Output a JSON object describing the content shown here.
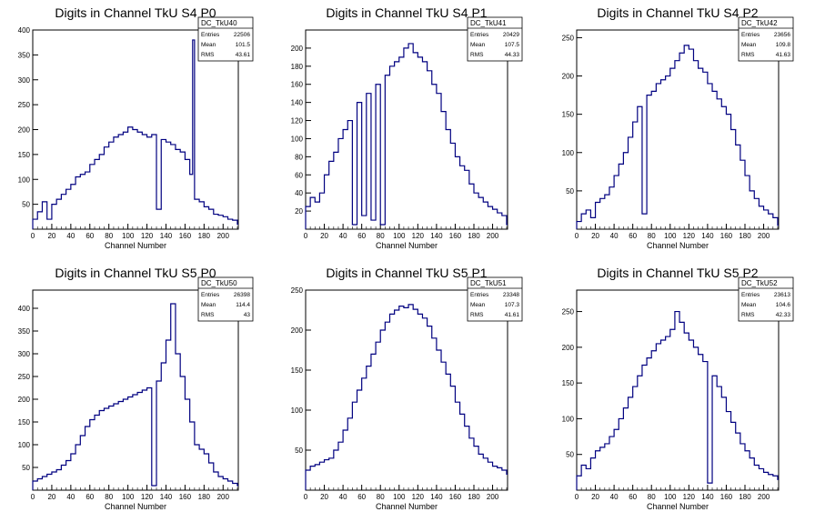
{
  "chart_data": [
    {
      "type": "histogram",
      "title": "Digits in Channel TkU S4 P0",
      "xlabel": "Channel Number",
      "xlim": [
        0,
        216
      ],
      "ylim": [
        0,
        400
      ],
      "xticks": [
        0,
        20,
        40,
        60,
        80,
        100,
        120,
        140,
        160,
        180,
        200
      ],
      "yticks": [
        50,
        100,
        150,
        200,
        250,
        300,
        350,
        400
      ],
      "color": "#000080",
      "stats": {
        "name": "DC_TkU40",
        "rows": [
          [
            "Entries",
            "22506"
          ],
          [
            "Mean",
            "101.5"
          ],
          [
            "RMS",
            "43.61"
          ]
        ]
      },
      "x": [
        [
          0,
          20
        ],
        [
          5,
          35
        ],
        [
          10,
          55
        ],
        [
          15,
          20
        ],
        [
          20,
          50
        ],
        [
          25,
          60
        ],
        [
          30,
          70
        ],
        [
          35,
          80
        ],
        [
          40,
          90
        ],
        [
          45,
          105
        ],
        [
          50,
          110
        ],
        [
          55,
          115
        ],
        [
          60,
          130
        ],
        [
          65,
          140
        ],
        [
          70,
          150
        ],
        [
          75,
          165
        ],
        [
          80,
          175
        ],
        [
          85,
          185
        ],
        [
          90,
          190
        ],
        [
          95,
          195
        ],
        [
          100,
          205
        ],
        [
          105,
          200
        ],
        [
          110,
          195
        ],
        [
          115,
          190
        ],
        [
          120,
          185
        ],
        [
          125,
          190
        ],
        [
          130,
          40
        ],
        [
          135,
          180
        ],
        [
          140,
          175
        ],
        [
          145,
          170
        ],
        [
          150,
          160
        ],
        [
          155,
          155
        ],
        [
          160,
          140
        ],
        [
          165,
          110
        ],
        [
          168,
          380
        ],
        [
          170,
          60
        ],
        [
          175,
          55
        ],
        [
          180,
          45
        ],
        [
          185,
          40
        ],
        [
          190,
          30
        ],
        [
          195,
          28
        ],
        [
          200,
          25
        ],
        [
          205,
          20
        ],
        [
          210,
          18
        ],
        [
          215,
          10
        ]
      ]
    },
    {
      "type": "histogram",
      "title": "Digits in Channel TkU S4 P1",
      "xlabel": "Channel Number",
      "xlim": [
        0,
        216
      ],
      "ylim": [
        0,
        220
      ],
      "xticks": [
        0,
        20,
        40,
        60,
        80,
        100,
        120,
        140,
        160,
        180,
        200
      ],
      "yticks": [
        20,
        40,
        60,
        80,
        100,
        120,
        140,
        160,
        180,
        200
      ],
      "color": "#000080",
      "stats": {
        "name": "DC_TkU41",
        "rows": [
          [
            "Entries",
            "20429"
          ],
          [
            "Mean",
            "107.5"
          ],
          [
            "RMS",
            "44.33"
          ]
        ]
      },
      "x": [
        [
          0,
          25
        ],
        [
          5,
          35
        ],
        [
          10,
          30
        ],
        [
          15,
          40
        ],
        [
          20,
          60
        ],
        [
          25,
          75
        ],
        [
          30,
          85
        ],
        [
          35,
          100
        ],
        [
          40,
          110
        ],
        [
          45,
          120
        ],
        [
          50,
          5
        ],
        [
          55,
          140
        ],
        [
          60,
          15
        ],
        [
          65,
          150
        ],
        [
          70,
          10
        ],
        [
          75,
          160
        ],
        [
          80,
          5
        ],
        [
          85,
          170
        ],
        [
          90,
          180
        ],
        [
          95,
          185
        ],
        [
          100,
          190
        ],
        [
          105,
          200
        ],
        [
          110,
          205
        ],
        [
          115,
          195
        ],
        [
          120,
          190
        ],
        [
          125,
          185
        ],
        [
          130,
          175
        ],
        [
          135,
          160
        ],
        [
          140,
          150
        ],
        [
          145,
          130
        ],
        [
          150,
          110
        ],
        [
          155,
          95
        ],
        [
          160,
          80
        ],
        [
          165,
          70
        ],
        [
          170,
          65
        ],
        [
          175,
          50
        ],
        [
          180,
          40
        ],
        [
          185,
          35
        ],
        [
          190,
          30
        ],
        [
          195,
          25
        ],
        [
          200,
          22
        ],
        [
          205,
          18
        ],
        [
          210,
          15
        ],
        [
          215,
          5
        ]
      ]
    },
    {
      "type": "histogram",
      "title": "Digits in Channel TkU S4 P2",
      "xlabel": "Channel Number",
      "xlim": [
        0,
        216
      ],
      "ylim": [
        0,
        260
      ],
      "xticks": [
        0,
        20,
        40,
        60,
        80,
        100,
        120,
        140,
        160,
        180,
        200
      ],
      "yticks": [
        50,
        100,
        150,
        200,
        250
      ],
      "color": "#000080",
      "stats": {
        "name": "DC_TkU42",
        "rows": [
          [
            "Entries",
            "23656"
          ],
          [
            "Mean",
            "109.8"
          ],
          [
            "RMS",
            "41.63"
          ]
        ]
      },
      "x": [
        [
          0,
          10
        ],
        [
          5,
          20
        ],
        [
          10,
          25
        ],
        [
          15,
          15
        ],
        [
          20,
          35
        ],
        [
          25,
          40
        ],
        [
          30,
          45
        ],
        [
          35,
          55
        ],
        [
          40,
          70
        ],
        [
          45,
          85
        ],
        [
          50,
          100
        ],
        [
          55,
          120
        ],
        [
          60,
          140
        ],
        [
          65,
          160
        ],
        [
          70,
          20
        ],
        [
          75,
          175
        ],
        [
          80,
          180
        ],
        [
          85,
          190
        ],
        [
          90,
          195
        ],
        [
          95,
          200
        ],
        [
          100,
          210
        ],
        [
          105,
          220
        ],
        [
          110,
          230
        ],
        [
          115,
          240
        ],
        [
          120,
          235
        ],
        [
          125,
          220
        ],
        [
          130,
          210
        ],
        [
          135,
          205
        ],
        [
          140,
          190
        ],
        [
          145,
          180
        ],
        [
          150,
          170
        ],
        [
          155,
          160
        ],
        [
          160,
          150
        ],
        [
          165,
          130
        ],
        [
          170,
          110
        ],
        [
          175,
          90
        ],
        [
          180,
          70
        ],
        [
          185,
          50
        ],
        [
          190,
          40
        ],
        [
          195,
          30
        ],
        [
          200,
          25
        ],
        [
          205,
          20
        ],
        [
          210,
          15
        ],
        [
          215,
          5
        ]
      ]
    },
    {
      "type": "histogram",
      "title": "Digits in Channel TkU S5 P0",
      "xlabel": "Channel Number",
      "xlim": [
        0,
        216
      ],
      "ylim": [
        0,
        440
      ],
      "xticks": [
        0,
        20,
        40,
        60,
        80,
        100,
        120,
        140,
        160,
        180,
        200
      ],
      "yticks": [
        50,
        100,
        150,
        200,
        250,
        300,
        350,
        400
      ],
      "color": "#000080",
      "stats": {
        "name": "DC_TkU50",
        "rows": [
          [
            "Entries",
            "26398"
          ],
          [
            "Mean",
            "114.4"
          ],
          [
            "RMS",
            "43"
          ]
        ]
      },
      "x": [
        [
          0,
          20
        ],
        [
          5,
          25
        ],
        [
          10,
          30
        ],
        [
          15,
          35
        ],
        [
          20,
          40
        ],
        [
          25,
          45
        ],
        [
          30,
          55
        ],
        [
          35,
          65
        ],
        [
          40,
          80
        ],
        [
          45,
          100
        ],
        [
          50,
          120
        ],
        [
          55,
          140
        ],
        [
          60,
          155
        ],
        [
          65,
          165
        ],
        [
          70,
          175
        ],
        [
          75,
          180
        ],
        [
          80,
          185
        ],
        [
          85,
          190
        ],
        [
          90,
          195
        ],
        [
          95,
          200
        ],
        [
          100,
          205
        ],
        [
          105,
          210
        ],
        [
          110,
          215
        ],
        [
          115,
          220
        ],
        [
          120,
          225
        ],
        [
          125,
          10
        ],
        [
          130,
          240
        ],
        [
          135,
          280
        ],
        [
          140,
          330
        ],
        [
          145,
          410
        ],
        [
          150,
          300
        ],
        [
          155,
          250
        ],
        [
          160,
          200
        ],
        [
          165,
          150
        ],
        [
          170,
          100
        ],
        [
          175,
          90
        ],
        [
          180,
          80
        ],
        [
          185,
          60
        ],
        [
          190,
          40
        ],
        [
          195,
          30
        ],
        [
          200,
          25
        ],
        [
          205,
          20
        ],
        [
          210,
          15
        ],
        [
          215,
          10
        ]
      ]
    },
    {
      "type": "histogram",
      "title": "Digits in Channel TkU S5 P1",
      "xlabel": "Channel Number",
      "xlim": [
        0,
        216
      ],
      "ylim": [
        0,
        250
      ],
      "xticks": [
        0,
        20,
        40,
        60,
        80,
        100,
        120,
        140,
        160,
        180,
        200
      ],
      "yticks": [
        50,
        100,
        150,
        200,
        250
      ],
      "color": "#000080",
      "stats": {
        "name": "DC_TkU51",
        "rows": [
          [
            "Entries",
            "23348"
          ],
          [
            "Mean",
            "107.3"
          ],
          [
            "RMS",
            "41.61"
          ]
        ]
      },
      "x": [
        [
          0,
          25
        ],
        [
          5,
          30
        ],
        [
          10,
          32
        ],
        [
          15,
          35
        ],
        [
          20,
          38
        ],
        [
          25,
          40
        ],
        [
          30,
          50
        ],
        [
          35,
          60
        ],
        [
          40,
          75
        ],
        [
          45,
          90
        ],
        [
          50,
          110
        ],
        [
          55,
          125
        ],
        [
          60,
          140
        ],
        [
          65,
          155
        ],
        [
          70,
          170
        ],
        [
          75,
          185
        ],
        [
          80,
          200
        ],
        [
          85,
          210
        ],
        [
          90,
          220
        ],
        [
          95,
          225
        ],
        [
          100,
          230
        ],
        [
          105,
          228
        ],
        [
          110,
          232
        ],
        [
          115,
          226
        ],
        [
          120,
          220
        ],
        [
          125,
          215
        ],
        [
          130,
          205
        ],
        [
          135,
          190
        ],
        [
          140,
          175
        ],
        [
          145,
          160
        ],
        [
          150,
          145
        ],
        [
          155,
          130
        ],
        [
          160,
          110
        ],
        [
          165,
          95
        ],
        [
          170,
          80
        ],
        [
          175,
          65
        ],
        [
          180,
          55
        ],
        [
          185,
          45
        ],
        [
          190,
          40
        ],
        [
          195,
          35
        ],
        [
          200,
          30
        ],
        [
          205,
          28
        ],
        [
          210,
          25
        ],
        [
          215,
          20
        ]
      ]
    },
    {
      "type": "histogram",
      "title": "Digits in Channel TkU S5 P2",
      "xlabel": "Channel Number",
      "xlim": [
        0,
        216
      ],
      "ylim": [
        0,
        280
      ],
      "xticks": [
        0,
        20,
        40,
        60,
        80,
        100,
        120,
        140,
        160,
        180,
        200
      ],
      "yticks": [
        50,
        100,
        150,
        200,
        250
      ],
      "color": "#000080",
      "stats": {
        "name": "DC_TkU52",
        "rows": [
          [
            "Entries",
            "23613"
          ],
          [
            "Mean",
            "104.6"
          ],
          [
            "RMS",
            "42.33"
          ]
        ]
      },
      "x": [
        [
          0,
          20
        ],
        [
          5,
          35
        ],
        [
          10,
          30
        ],
        [
          15,
          45
        ],
        [
          20,
          55
        ],
        [
          25,
          60
        ],
        [
          30,
          65
        ],
        [
          35,
          75
        ],
        [
          40,
          85
        ],
        [
          45,
          100
        ],
        [
          50,
          115
        ],
        [
          55,
          130
        ],
        [
          60,
          145
        ],
        [
          65,
          160
        ],
        [
          70,
          175
        ],
        [
          75,
          185
        ],
        [
          80,
          195
        ],
        [
          85,
          205
        ],
        [
          90,
          210
        ],
        [
          95,
          215
        ],
        [
          100,
          225
        ],
        [
          105,
          250
        ],
        [
          110,
          235
        ],
        [
          115,
          220
        ],
        [
          120,
          210
        ],
        [
          125,
          200
        ],
        [
          130,
          190
        ],
        [
          135,
          180
        ],
        [
          140,
          10
        ],
        [
          145,
          160
        ],
        [
          150,
          145
        ],
        [
          155,
          130
        ],
        [
          160,
          110
        ],
        [
          165,
          95
        ],
        [
          170,
          80
        ],
        [
          175,
          65
        ],
        [
          180,
          55
        ],
        [
          185,
          45
        ],
        [
          190,
          35
        ],
        [
          195,
          30
        ],
        [
          200,
          25
        ],
        [
          205,
          22
        ],
        [
          210,
          20
        ],
        [
          215,
          15
        ]
      ]
    }
  ]
}
